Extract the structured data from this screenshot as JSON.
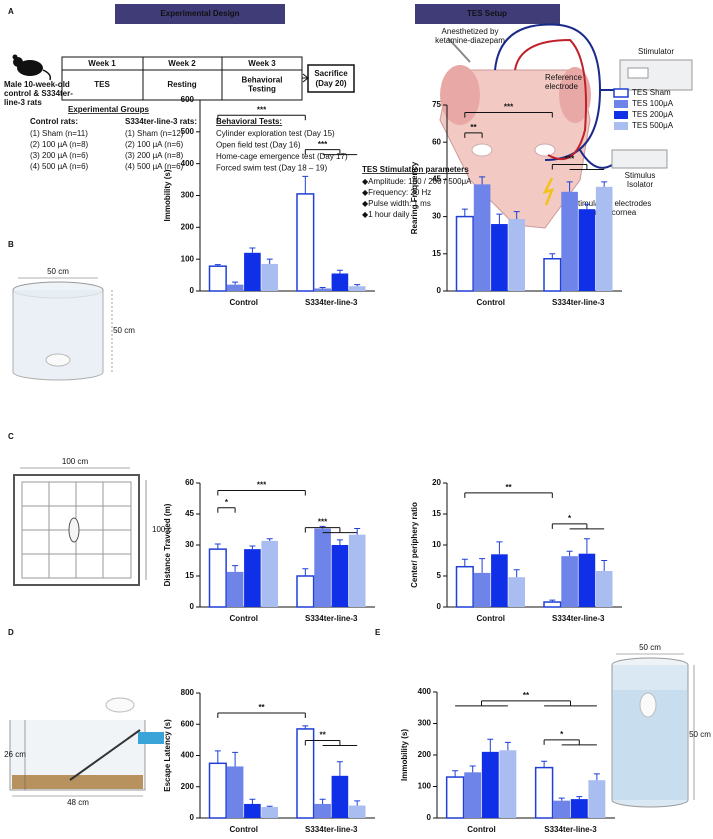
{
  "panel_labels": [
    "A",
    "B",
    "C",
    "D",
    "E"
  ],
  "panel_a": {
    "design_title": "Experimental Design",
    "subject": [
      "Male 10-week-old",
      "control & S334ter-",
      "line-3 rats"
    ],
    "weeks": [
      "Week 1",
      "Week 2",
      "Week 3"
    ],
    "phases": [
      [
        "TES"
      ],
      [
        "Resting"
      ],
      [
        "Behavioral",
        "Testing"
      ]
    ],
    "sacrifice": [
      "Sacrifice",
      "(Day 20)"
    ],
    "groups_title": "Experimental Groups",
    "control_title": "Control rats:",
    "control_groups": [
      "(1) Sham (n=11)",
      "(2) 100 µA (n=8)",
      "(3) 200 µA (n=6)",
      "(4) 500 µA (n=6)"
    ],
    "s334_title": "S334ter-line-3 rats:",
    "s334_groups": [
      "(1) Sham (n=12)",
      "(2) 100 µA (n=6)",
      "(3) 200 µA (n=8)",
      "(4) 500 µA (n=6)"
    ],
    "tests_title": "Behavioral Tests:",
    "tests": [
      "Cylinder exploration test (Day 15)",
      "Open field test (Day 16)",
      "Home-cage emergence test (Day 17)",
      "Forced swim test  (Day 18 – 19)"
    ],
    "setup_title": "TES Setup",
    "anesthesia": [
      "Anesthetized by",
      "ketamine-diazepam"
    ],
    "reference": [
      "Reference",
      "electrode"
    ],
    "stimulator": "Stimulator",
    "isolator": [
      "Stimulus",
      "Isolator"
    ],
    "cornea": [
      "Stimulating electrodes",
      "on left cornea"
    ],
    "params_title": "TES Stimulation parameters",
    "params": [
      "◆Amplitude: 100 / 200 / 500μA",
      "◆Frequency: 20 Hz",
      "◆Pulse width: 1 ms",
      "◆1 hour daily"
    ]
  },
  "illustrations": {
    "b_width": "50 cm",
    "b_height": "50 cm",
    "c_width": "100 cm",
    "c_height": "100 c",
    "d_height": "26 cm",
    "d_width": "48 cm",
    "e_width": "50 cm",
    "e_height": "50 cm"
  },
  "chart_data": [
    {
      "type": "bar",
      "ylabel": "Immobility (s)",
      "categories": [
        "Control",
        "S334ter-line-3"
      ],
      "edge_color": "#1f3fd6",
      "series": [
        {
          "name": "TES Sham",
          "color": "#ffffff",
          "values": [
            78,
            305
          ],
          "errors": [
            5,
            55
          ]
        },
        {
          "name": "TES 100μA",
          "color": "#6f84e8",
          "values": [
            20,
            8
          ],
          "errors": [
            8,
            3
          ]
        },
        {
          "name": "TES 200μA",
          "color": "#1030e8",
          "values": [
            120,
            55
          ],
          "errors": [
            15,
            10
          ]
        },
        {
          "name": "TES 500μA",
          "color": "#a9bdf0",
          "values": [
            85,
            15
          ],
          "errors": [
            15,
            5
          ]
        }
      ],
      "ylim": [
        0,
        600
      ],
      "yticks": [
        0,
        100,
        200,
        300,
        400,
        500,
        600
      ],
      "annotations": [
        "***",
        "***"
      ]
    },
    {
      "type": "bar",
      "ylabel": "Rearing Frequency",
      "categories": [
        "Control",
        "S334ter-line-3"
      ],
      "edge_color": "#1f3fd6",
      "series": [
        {
          "name": "TES Sham",
          "color": "#ffffff",
          "values": [
            30,
            13
          ],
          "errors": [
            3,
            2
          ]
        },
        {
          "name": "TES 100μA",
          "color": "#6f84e8",
          "values": [
            43,
            40
          ],
          "errors": [
            3,
            4
          ]
        },
        {
          "name": "TES 200μA",
          "color": "#1030e8",
          "values": [
            27,
            33
          ],
          "errors": [
            4,
            2
          ]
        },
        {
          "name": "TES 500μA",
          "color": "#a9bdf0",
          "values": [
            29,
            42
          ],
          "errors": [
            3,
            2
          ]
        }
      ],
      "ylim": [
        0,
        75
      ],
      "yticks": [
        0,
        15,
        30,
        45,
        60,
        75
      ],
      "annotations": [
        "***",
        "**",
        "***"
      ],
      "legend": "upper right"
    },
    {
      "type": "bar",
      "ylabel": "Distance Traveled (m)",
      "categories": [
        "Control",
        "S334ter-line-3"
      ],
      "edge_color": "#1f3fd6",
      "series": [
        {
          "name": "TES Sham",
          "color": "#ffffff",
          "values": [
            28,
            15
          ],
          "errors": [
            2.5,
            3.5
          ]
        },
        {
          "name": "TES 100μA",
          "color": "#6f84e8",
          "values": [
            17,
            38
          ],
          "errors": [
            3,
            1
          ]
        },
        {
          "name": "TES 200μA",
          "color": "#1030e8",
          "values": [
            28,
            30
          ],
          "errors": [
            1.5,
            2.5
          ]
        },
        {
          "name": "TES 500μA",
          "color": "#a9bdf0",
          "values": [
            32,
            35
          ],
          "errors": [
            1,
            3
          ]
        }
      ],
      "ylim": [
        0,
        60
      ],
      "yticks": [
        0,
        15,
        30,
        45,
        60
      ],
      "annotations": [
        "***",
        "*",
        "***"
      ]
    },
    {
      "type": "bar",
      "ylabel": "Center/ periphery ratio",
      "categories": [
        "Control",
        "S334ter-line-3"
      ],
      "edge_color": "#1f3fd6",
      "series": [
        {
          "name": "TES Sham",
          "color": "#ffffff",
          "values": [
            6.5,
            0.8
          ],
          "errors": [
            1.2,
            0.3
          ]
        },
        {
          "name": "TES 100μA",
          "color": "#6f84e8",
          "values": [
            5.5,
            8.2
          ],
          "errors": [
            2.3,
            0.8
          ]
        },
        {
          "name": "TES 200μA",
          "color": "#1030e8",
          "values": [
            8.5,
            8.6
          ],
          "errors": [
            2,
            2.4
          ]
        },
        {
          "name": "TES 500μA",
          "color": "#a9bdf0",
          "values": [
            4.8,
            5.8
          ],
          "errors": [
            1.2,
            1.7
          ]
        }
      ],
      "ylim": [
        0,
        20
      ],
      "yticks": [
        0,
        5,
        10,
        15,
        20
      ],
      "annotations": [
        "**",
        "*"
      ]
    },
    {
      "type": "bar",
      "ylabel": "Escape Latency (s)",
      "categories": [
        "Control",
        "S334ter-line-3"
      ],
      "edge_color": "#1f3fd6",
      "series": [
        {
          "name": "TES Sham",
          "color": "#ffffff",
          "values": [
            350,
            570
          ],
          "errors": [
            80,
            20
          ]
        },
        {
          "name": "TES 100μA",
          "color": "#6f84e8",
          "values": [
            330,
            90
          ],
          "errors": [
            90,
            30
          ]
        },
        {
          "name": "TES 200μA",
          "color": "#1030e8",
          "values": [
            90,
            270
          ],
          "errors": [
            30,
            90
          ]
        },
        {
          "name": "TES 500μA",
          "color": "#a9bdf0",
          "values": [
            70,
            80
          ],
          "errors": [
            5,
            30
          ]
        }
      ],
      "ylim": [
        0,
        800
      ],
      "yticks": [
        0,
        200,
        400,
        600,
        800
      ],
      "annotations": [
        "**",
        "**"
      ]
    },
    {
      "type": "bar",
      "ylabel": "Immobility (s)",
      "categories": [
        "Control",
        "S334ter-line-3"
      ],
      "edge_color": "#1f3fd6",
      "series": [
        {
          "name": "TES Sham",
          "color": "#ffffff",
          "values": [
            130,
            160
          ],
          "errors": [
            20,
            20
          ]
        },
        {
          "name": "TES 100μA",
          "color": "#6f84e8",
          "values": [
            145,
            55
          ],
          "errors": [
            20,
            8
          ]
        },
        {
          "name": "TES 200μA",
          "color": "#1030e8",
          "values": [
            210,
            60
          ],
          "errors": [
            40,
            8
          ]
        },
        {
          "name": "TES 500μA",
          "color": "#a9bdf0",
          "values": [
            215,
            120
          ],
          "errors": [
            25,
            20
          ]
        }
      ],
      "ylim": [
        0,
        400
      ],
      "yticks": [
        0,
        100,
        200,
        300,
        400
      ],
      "annotations": [
        "**",
        "*"
      ]
    }
  ]
}
